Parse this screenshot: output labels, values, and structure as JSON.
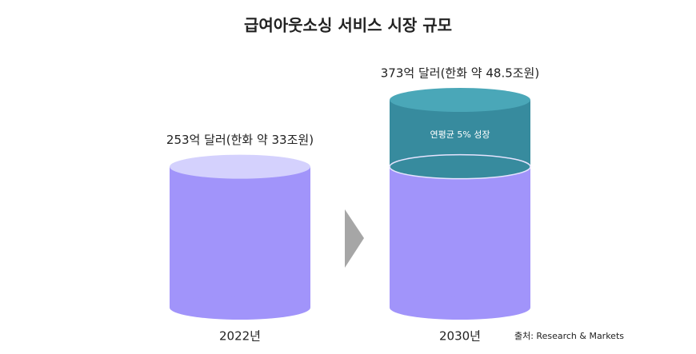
{
  "chart_data": {
    "type": "cylinder",
    "title": "급여아웃소싱 서비스 시장 규모",
    "categories": [
      "2022년",
      "2030년"
    ],
    "values": [
      253,
      373
    ],
    "value_labels": [
      "253억 달러(한화 약 33조원)",
      "373억 달러(한화 약 48.5조원)"
    ],
    "colors": {
      "body": "#a194fa",
      "top": "#d4d1fd",
      "growth": "#378b9e",
      "growth_top": "#4aa7b8"
    },
    "annotation": "연평균 5% 성장",
    "source": "출처: Research & Markets"
  }
}
